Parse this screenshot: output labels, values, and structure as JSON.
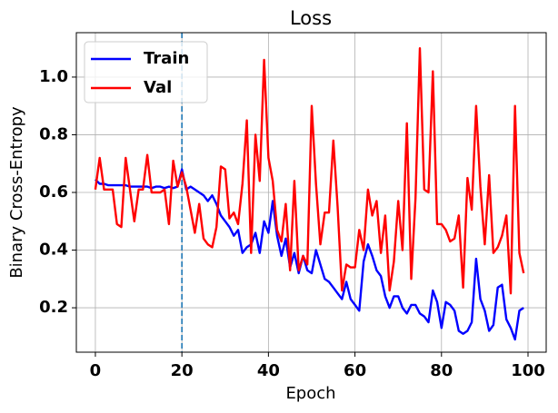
{
  "chart_data": {
    "type": "line",
    "title": "Loss",
    "xlabel": "Epoch",
    "ylabel": "Binary Cross-Entropy",
    "x": [
      0,
      1,
      2,
      3,
      4,
      5,
      6,
      7,
      8,
      9,
      10,
      11,
      12,
      13,
      14,
      15,
      16,
      17,
      18,
      19,
      20,
      21,
      22,
      23,
      24,
      25,
      26,
      27,
      28,
      29,
      30,
      31,
      32,
      33,
      34,
      35,
      36,
      37,
      38,
      39,
      40,
      41,
      42,
      43,
      44,
      45,
      46,
      47,
      48,
      49,
      50,
      51,
      52,
      53,
      54,
      55,
      56,
      57,
      58,
      59,
      60,
      61,
      62,
      63,
      64,
      65,
      66,
      67,
      68,
      69,
      70,
      71,
      72,
      73,
      74,
      75,
      76,
      77,
      78,
      79,
      80,
      81,
      82,
      83,
      84,
      85,
      86,
      87,
      88,
      89,
      90,
      91,
      92,
      93,
      94,
      95,
      96,
      97,
      98,
      99
    ],
    "series": [
      {
        "name": "Train",
        "color": "#0000ff",
        "values": [
          0.645,
          0.63,
          0.63,
          0.625,
          0.625,
          0.625,
          0.625,
          0.625,
          0.62,
          0.62,
          0.62,
          0.62,
          0.62,
          0.615,
          0.62,
          0.62,
          0.615,
          0.62,
          0.615,
          0.62,
          0.68,
          0.61,
          0.62,
          0.61,
          0.6,
          0.59,
          0.57,
          0.59,
          0.56,
          0.52,
          0.5,
          0.48,
          0.45,
          0.47,
          0.39,
          0.41,
          0.42,
          0.46,
          0.39,
          0.5,
          0.46,
          0.57,
          0.45,
          0.38,
          0.44,
          0.34,
          0.39,
          0.32,
          0.38,
          0.33,
          0.32,
          0.4,
          0.35,
          0.3,
          0.29,
          0.27,
          0.25,
          0.23,
          0.29,
          0.23,
          0.21,
          0.19,
          0.36,
          0.42,
          0.38,
          0.33,
          0.31,
          0.24,
          0.2,
          0.24,
          0.24,
          0.2,
          0.18,
          0.21,
          0.21,
          0.18,
          0.17,
          0.15,
          0.26,
          0.22,
          0.13,
          0.22,
          0.21,
          0.19,
          0.12,
          0.11,
          0.12,
          0.15,
          0.37,
          0.23,
          0.19,
          0.12,
          0.14,
          0.27,
          0.28,
          0.16,
          0.13,
          0.09,
          0.19,
          0.2
        ]
      },
      {
        "name": "Val",
        "color": "#ff0000",
        "values": [
          0.61,
          0.72,
          0.61,
          0.61,
          0.61,
          0.49,
          0.48,
          0.72,
          0.61,
          0.5,
          0.61,
          0.61,
          0.73,
          0.6,
          0.6,
          0.6,
          0.61,
          0.49,
          0.71,
          0.62,
          0.67,
          0.62,
          0.54,
          0.46,
          0.56,
          0.44,
          0.42,
          0.41,
          0.48,
          0.69,
          0.68,
          0.51,
          0.53,
          0.49,
          0.63,
          0.85,
          0.39,
          0.8,
          0.64,
          1.06,
          0.72,
          0.64,
          0.47,
          0.43,
          0.56,
          0.33,
          0.64,
          0.33,
          0.38,
          0.35,
          0.9,
          0.63,
          0.42,
          0.53,
          0.53,
          0.78,
          0.55,
          0.26,
          0.35,
          0.34,
          0.34,
          0.47,
          0.4,
          0.61,
          0.52,
          0.57,
          0.39,
          0.52,
          0.26,
          0.36,
          0.57,
          0.4,
          0.84,
          0.3,
          0.58,
          1.1,
          0.61,
          0.6,
          1.02,
          0.49,
          0.49,
          0.47,
          0.43,
          0.44,
          0.52,
          0.27,
          0.65,
          0.54,
          0.9,
          0.62,
          0.42,
          0.66,
          0.39,
          0.41,
          0.45,
          0.52,
          0.25,
          0.9,
          0.39,
          0.32
        ]
      }
    ],
    "xlim": [
      -4.4,
      104.2
    ],
    "ylim": [
      0.046,
      1.154
    ],
    "xticks": [
      0,
      20,
      40,
      60,
      80,
      100
    ],
    "yticks": [
      0.2,
      0.4,
      0.6,
      0.8,
      {
        "value": 1,
        "label": "1.0"
      }
    ],
    "grid": true,
    "legend": "upper left",
    "vline": {
      "x": 20,
      "color": "#1f77b4"
    }
  }
}
